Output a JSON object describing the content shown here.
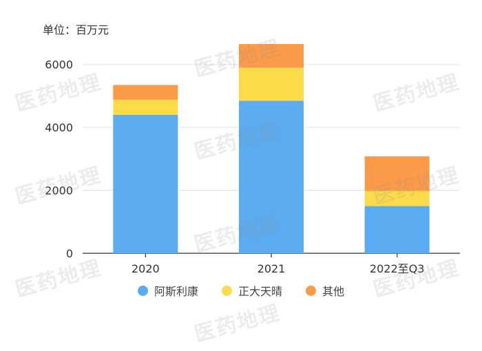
{
  "unit_label": "单位：百万元",
  "watermark_text": "医药地理",
  "chart_data": {
    "type": "bar",
    "stacked": true,
    "categories": [
      "2020",
      "2021",
      "2022至Q3"
    ],
    "series": [
      {
        "name": "阿斯利康",
        "color": "#5aabef",
        "values": [
          4400,
          4850,
          1500
        ]
      },
      {
        "name": "正大天晴",
        "color": "#fcdb4a",
        "values": [
          480,
          1050,
          480
        ]
      },
      {
        "name": "其他",
        "color": "#fb9a49",
        "values": [
          470,
          750,
          1100
        ]
      }
    ],
    "ylim": [
      0,
      7000
    ],
    "yticks": [
      0,
      2000,
      4000,
      6000
    ],
    "grid": true,
    "legend_position": "bottom"
  }
}
